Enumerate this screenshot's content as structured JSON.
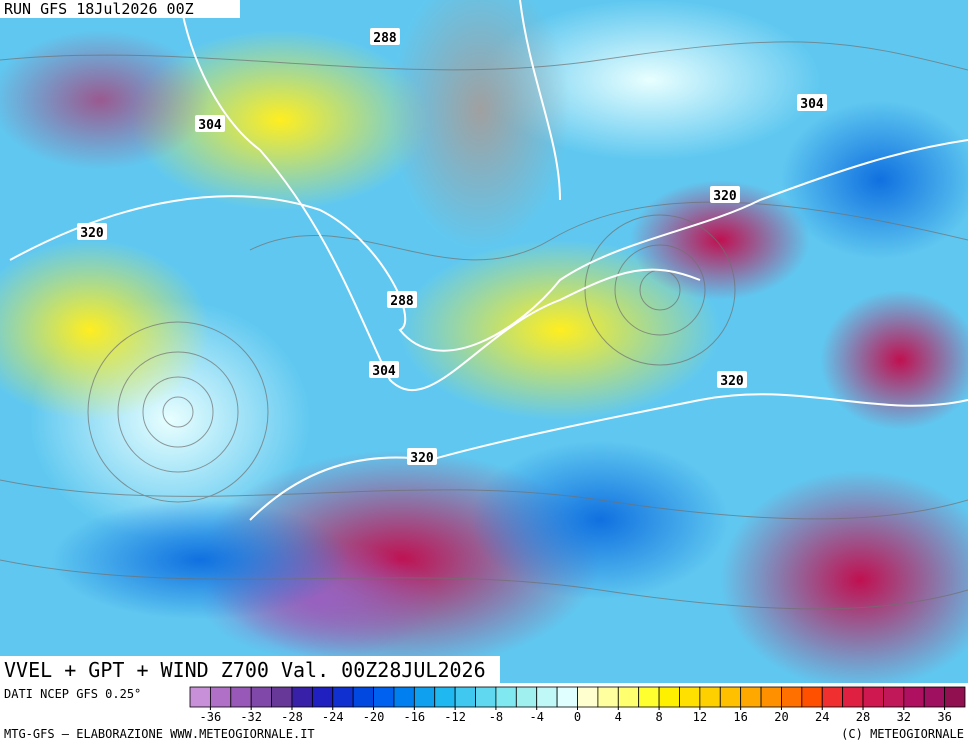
{
  "header": {
    "run": "RUN GFS 18Jul2026 00Z"
  },
  "map": {
    "contour_labels": [
      "288",
      "304",
      "304",
      "320",
      "320",
      "288",
      "304",
      "320",
      "320"
    ]
  },
  "title": "VVEL + GPT + WIND Z700 Val. 00Z28JUL2026",
  "source": "DATI NCEP GFS 0.25°",
  "colorbar": {
    "range": [
      -38,
      38
    ],
    "colors": [
      "#c890d8",
      "#b070c8",
      "#9858b8",
      "#8048a8",
      "#683898",
      "#3820a8",
      "#2020c0",
      "#1030d0",
      "#0048e0",
      "#0060f0",
      "#0080f0",
      "#10a0f0",
      "#20b8f0",
      "#40c8f0",
      "#60d8f0",
      "#80e8f0",
      "#a0f0f0",
      "#c0f8f8",
      "#e0ffff",
      "#ffffd0",
      "#ffffa0",
      "#ffff70",
      "#ffff30",
      "#fff000",
      "#ffe000",
      "#ffd000",
      "#ffc000",
      "#ffa800",
      "#ff9000",
      "#ff7000",
      "#ff5000",
      "#f03030",
      "#e02040",
      "#d01850",
      "#c01858",
      "#b01060",
      "#a01060",
      "#901050"
    ],
    "ticks": [
      -36,
      -32,
      -28,
      -24,
      -20,
      -16,
      -12,
      -8,
      -4,
      0,
      4,
      8,
      12,
      16,
      20,
      24,
      28,
      32,
      36
    ]
  },
  "footer": {
    "left": "MTG-GFS – ELABORAZIONE WWW.METEOGIORNALE.IT",
    "right": "(C) METEOGIORNALE"
  }
}
